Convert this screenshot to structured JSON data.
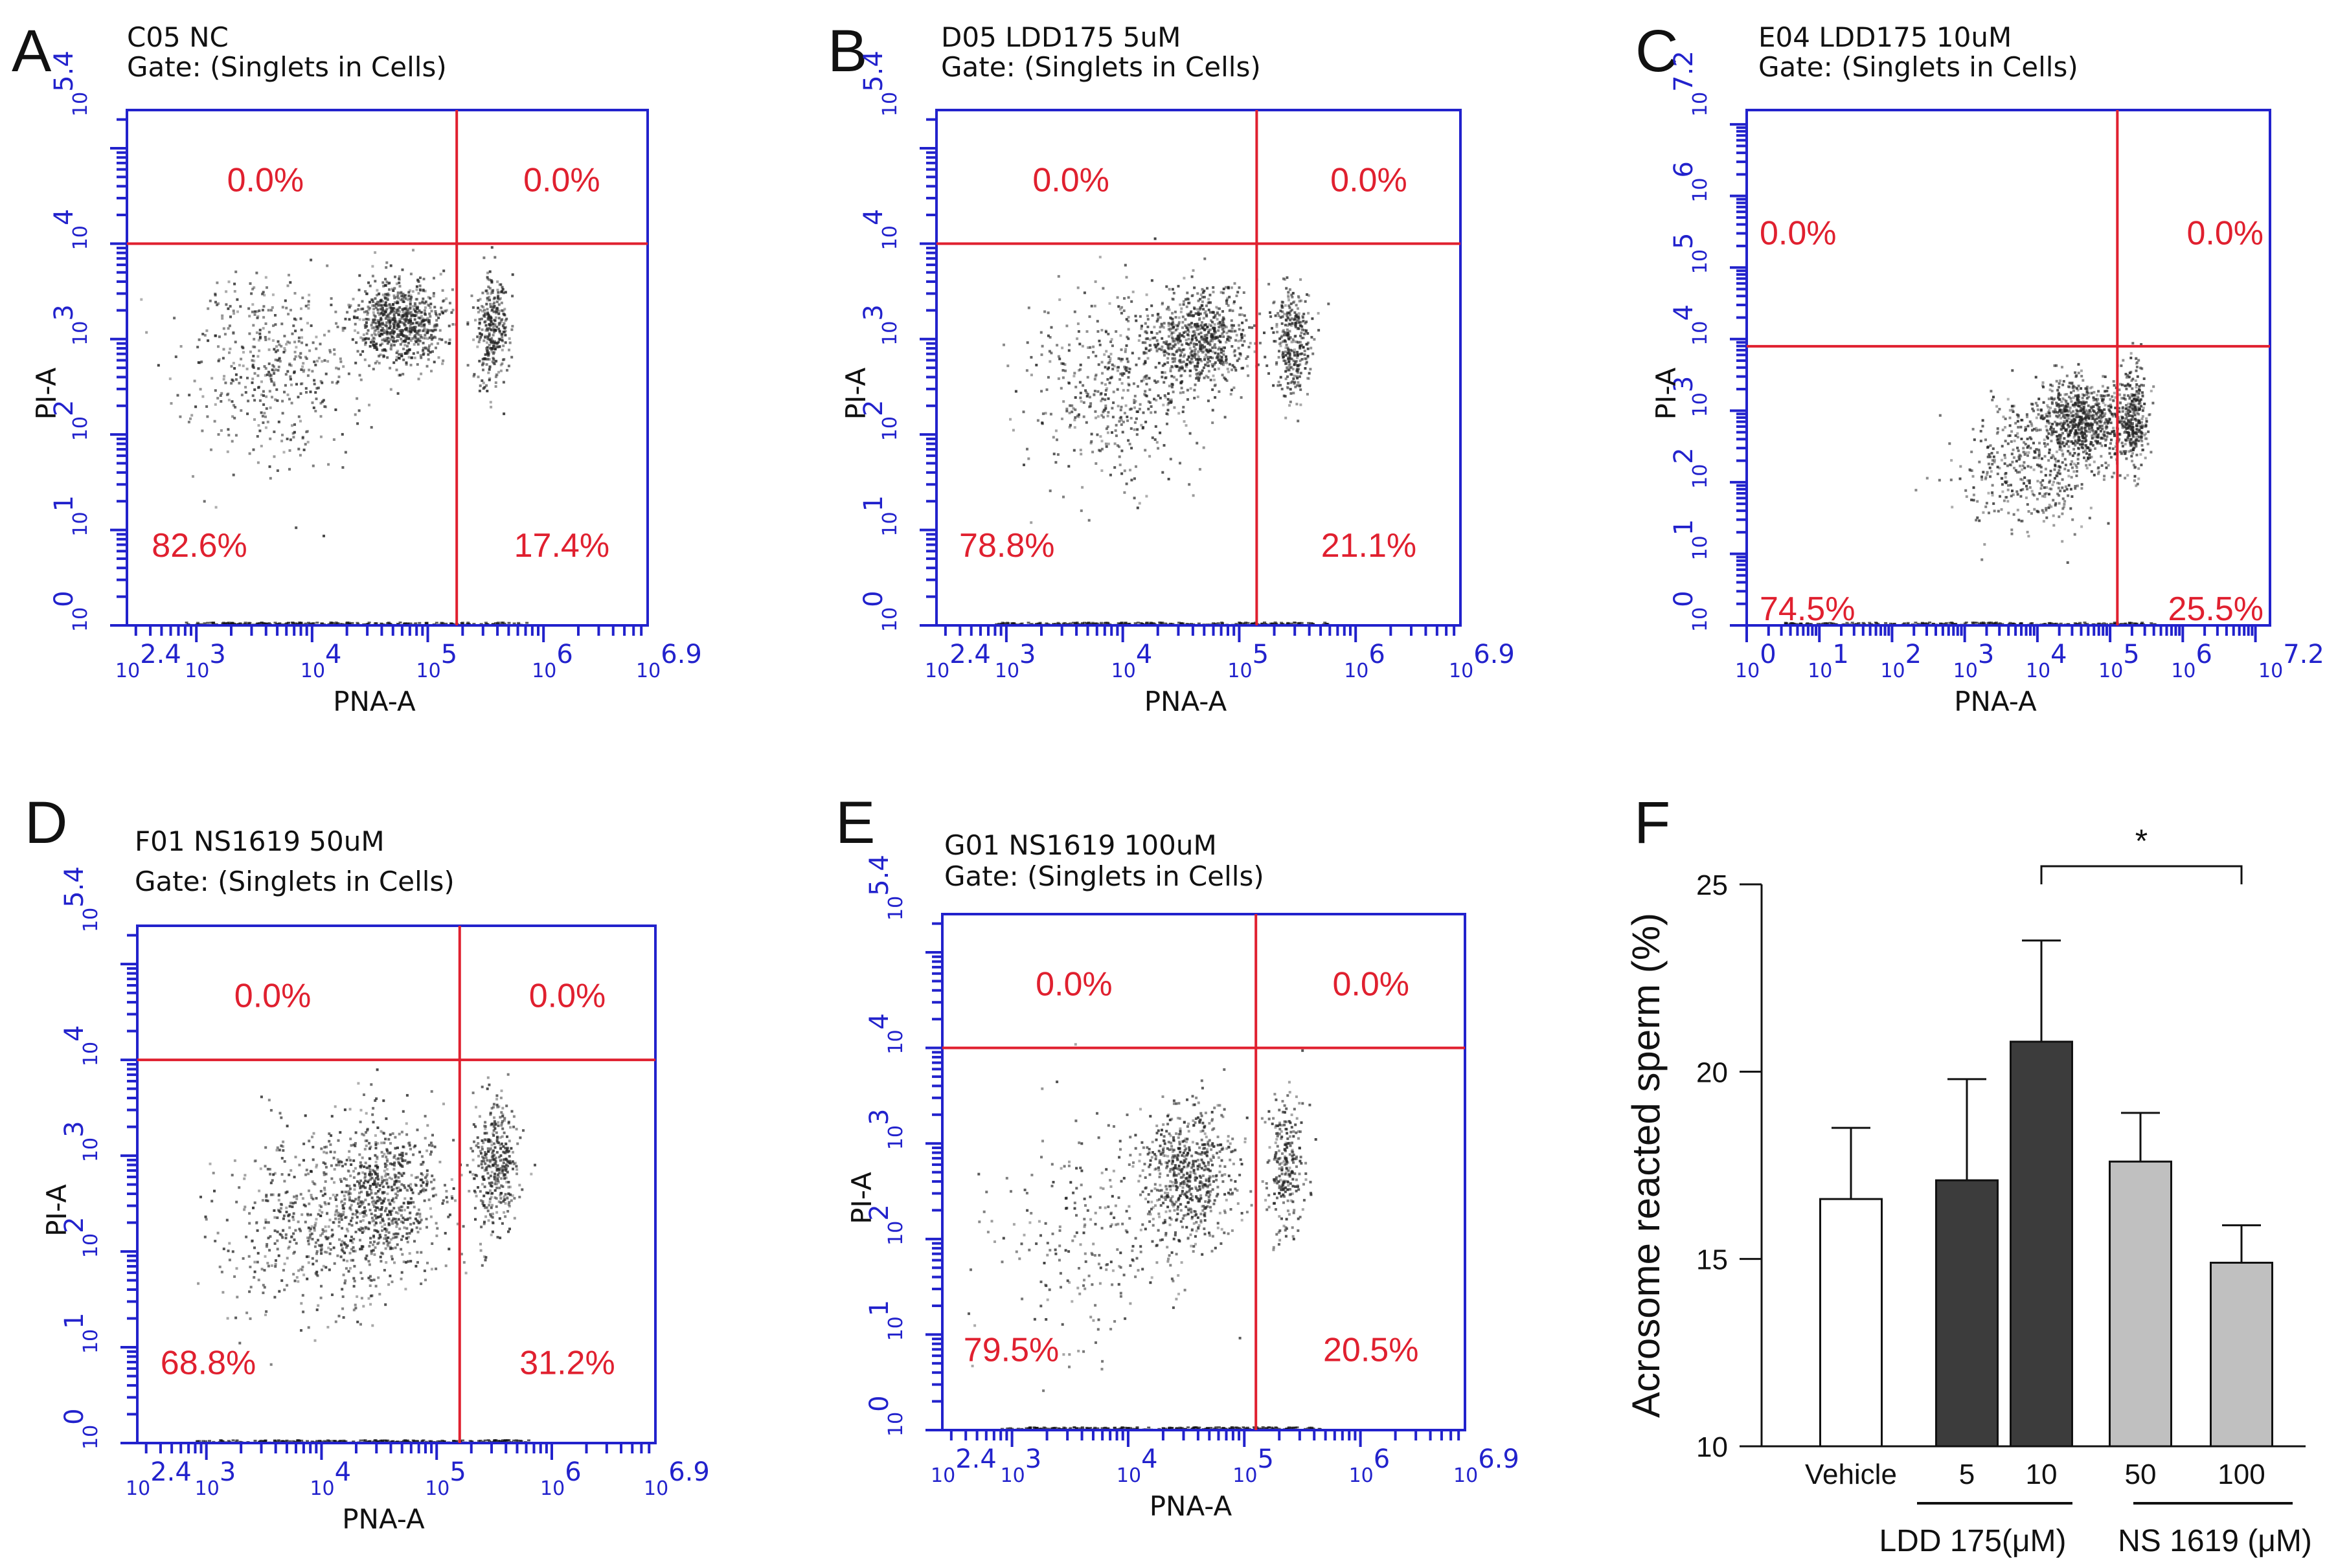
{
  "figure": {
    "colors": {
      "axis": "#2222cc",
      "gate": "#e0202f",
      "dots": "#222222",
      "bar_open": "#ffffff",
      "bar_dark": "#3c3c3c",
      "bar_light": "#c0c0c0"
    }
  },
  "chart_data": [
    {
      "panel": "A",
      "type": "scatter",
      "title": "C05 NC",
      "subtitle": "Gate: (Singlets in Cells)",
      "xlabel": "PNA-A",
      "ylabel": "PI-A",
      "x_scale": "log10",
      "y_scale": "log10",
      "xlim": [
        2.4,
        6.9
      ],
      "ylim": [
        0,
        5.4
      ],
      "x_ticks": [
        "2.4",
        "3",
        "4",
        "5",
        "6",
        "6.9"
      ],
      "y_ticks": [
        "0",
        "1",
        "2",
        "3",
        "4",
        "5.4"
      ],
      "gate": {
        "x": 5.25,
        "y": 4.0
      },
      "quadrants": {
        "UL": "0.0%",
        "UR": "0.0%",
        "LL": "82.6%",
        "LR": "17.4%"
      },
      "clusters": [
        {
          "cx": 3.6,
          "cy": 2.7,
          "sx": 0.38,
          "sy": 0.5,
          "n": 450
        },
        {
          "cx": 4.75,
          "cy": 3.2,
          "sx": 0.2,
          "sy": 0.22,
          "n": 750
        },
        {
          "cx": 5.55,
          "cy": 3.1,
          "sx": 0.07,
          "sy": 0.3,
          "n": 300
        }
      ]
    },
    {
      "panel": "B",
      "type": "scatter",
      "title": "D05 LDD175 5uM",
      "subtitle": "Gate: (Singlets in Cells)",
      "xlabel": "PNA-A",
      "ylabel": "PI-A",
      "x_scale": "log10",
      "y_scale": "log10",
      "xlim": [
        2.4,
        6.9
      ],
      "ylim": [
        0,
        5.4
      ],
      "x_ticks": [
        "2.4",
        "3",
        "4",
        "5",
        "6",
        "6.9"
      ],
      "y_ticks": [
        "0",
        "1",
        "2",
        "3",
        "4",
        "5.4"
      ],
      "gate": {
        "x": 5.15,
        "y": 4.0
      },
      "quadrants": {
        "UL": "0.0%",
        "UR": "0.0%",
        "LL": "78.8%",
        "LR": "21.1%"
      },
      "clusters": [
        {
          "cx": 3.9,
          "cy": 2.5,
          "sx": 0.35,
          "sy": 0.5,
          "n": 450
        },
        {
          "cx": 4.65,
          "cy": 3.0,
          "sx": 0.22,
          "sy": 0.25,
          "n": 700
        },
        {
          "cx": 5.45,
          "cy": 2.95,
          "sx": 0.08,
          "sy": 0.3,
          "n": 300
        }
      ]
    },
    {
      "panel": "C",
      "type": "scatter",
      "title": "E04 LDD175 10uM",
      "subtitle": "Gate: (Singlets in Cells)",
      "xlabel": "PNA-A",
      "ylabel": "PI-A",
      "x_scale": "log10",
      "y_scale": "log10",
      "xlim": [
        0,
        7.2
      ],
      "ylim": [
        0,
        7.2
      ],
      "x_ticks": [
        "0",
        "1",
        "2",
        "3",
        "4",
        "5",
        "6",
        "7.2"
      ],
      "y_ticks": [
        "0",
        "1",
        "2",
        "3",
        "4",
        "5",
        "6",
        "7.2"
      ],
      "gate": {
        "x": 5.1,
        "y": 3.9
      },
      "quadrants": {
        "UL": "0.0%",
        "UR": "0.0%",
        "LL": "74.5%",
        "LR": "25.5%"
      },
      "clusters": [
        {
          "cx": 3.9,
          "cy": 2.3,
          "sx": 0.5,
          "sy": 0.45,
          "n": 450
        },
        {
          "cx": 4.6,
          "cy": 2.9,
          "sx": 0.3,
          "sy": 0.28,
          "n": 650
        },
        {
          "cx": 5.3,
          "cy": 2.9,
          "sx": 0.1,
          "sy": 0.35,
          "n": 300
        }
      ]
    },
    {
      "panel": "D",
      "type": "scatter",
      "title": "F01 NS1619 50uM",
      "subtitle": "Gate: (Singlets in Cells)",
      "xlabel": "PNA-A",
      "ylabel": "PI-A",
      "x_scale": "log10",
      "y_scale": "log10",
      "xlim": [
        2.4,
        6.9
      ],
      "ylim": [
        0,
        5.4
      ],
      "x_ticks": [
        "2.4",
        "3",
        "4",
        "5",
        "6",
        "6.9"
      ],
      "y_ticks": [
        "0",
        "1",
        "2",
        "3",
        "4",
        "5.4"
      ],
      "gate": {
        "x": 5.2,
        "y": 4.0
      },
      "quadrants": {
        "UL": "0.0%",
        "UR": "0.0%",
        "LL": "68.8%",
        "LR": "31.2%"
      },
      "clusters": [
        {
          "cx": 3.9,
          "cy": 2.3,
          "sx": 0.4,
          "sy": 0.5,
          "n": 500
        },
        {
          "cx": 4.55,
          "cy": 2.6,
          "sx": 0.25,
          "sy": 0.4,
          "n": 650
        },
        {
          "cx": 5.5,
          "cy": 2.9,
          "sx": 0.1,
          "sy": 0.35,
          "n": 350
        }
      ]
    },
    {
      "panel": "E",
      "type": "scatter",
      "title": "G01 NS1619 100uM",
      "subtitle": "Gate: (Singlets in Cells)",
      "xlabel": "PNA-A",
      "ylabel": "PI-A",
      "x_scale": "log10",
      "y_scale": "log10",
      "xlim": [
        2.4,
        6.9
      ],
      "ylim": [
        0,
        5.4
      ],
      "x_ticks": [
        "2.4",
        "3",
        "4",
        "5",
        "6",
        "6.9"
      ],
      "y_ticks": [
        "0",
        "1",
        "2",
        "3",
        "4",
        "5.4"
      ],
      "gate": {
        "x": 5.1,
        "y": 4.0
      },
      "quadrants": {
        "UL": "0.0%",
        "UR": "0.0%",
        "LL": "79.5%",
        "LR": "20.5%"
      },
      "clusters": [
        {
          "cx": 3.7,
          "cy": 2.0,
          "sx": 0.5,
          "sy": 0.6,
          "n": 250
        },
        {
          "cx": 4.5,
          "cy": 2.7,
          "sx": 0.2,
          "sy": 0.35,
          "n": 600
        },
        {
          "cx": 5.35,
          "cy": 2.8,
          "sx": 0.08,
          "sy": 0.35,
          "n": 250
        }
      ]
    },
    {
      "panel": "F",
      "type": "bar",
      "ylabel": "Acrosome reacted sperm (%)",
      "ylim": [
        10,
        25
      ],
      "y_ticks": [
        "10",
        "15",
        "20",
        "25"
      ],
      "categories": [
        "Vehicle",
        "5",
        "10",
        "50",
        "100"
      ],
      "values": [
        16.6,
        17.1,
        20.8,
        17.6,
        14.9
      ],
      "errors": [
        1.9,
        2.7,
        2.7,
        1.3,
        1.0
      ],
      "bar_colors": [
        "#ffffff",
        "#3c3c3c",
        "#3c3c3c",
        "#c0c0c0",
        "#c0c0c0"
      ],
      "groups": [
        {
          "label": "LDD 175(μM)",
          "from": 1,
          "to": 2
        },
        {
          "label": "NS 1619 (μM)",
          "from": 3,
          "to": 4
        }
      ],
      "significance": {
        "from": 2,
        "to": 4,
        "label": "*"
      }
    }
  ]
}
